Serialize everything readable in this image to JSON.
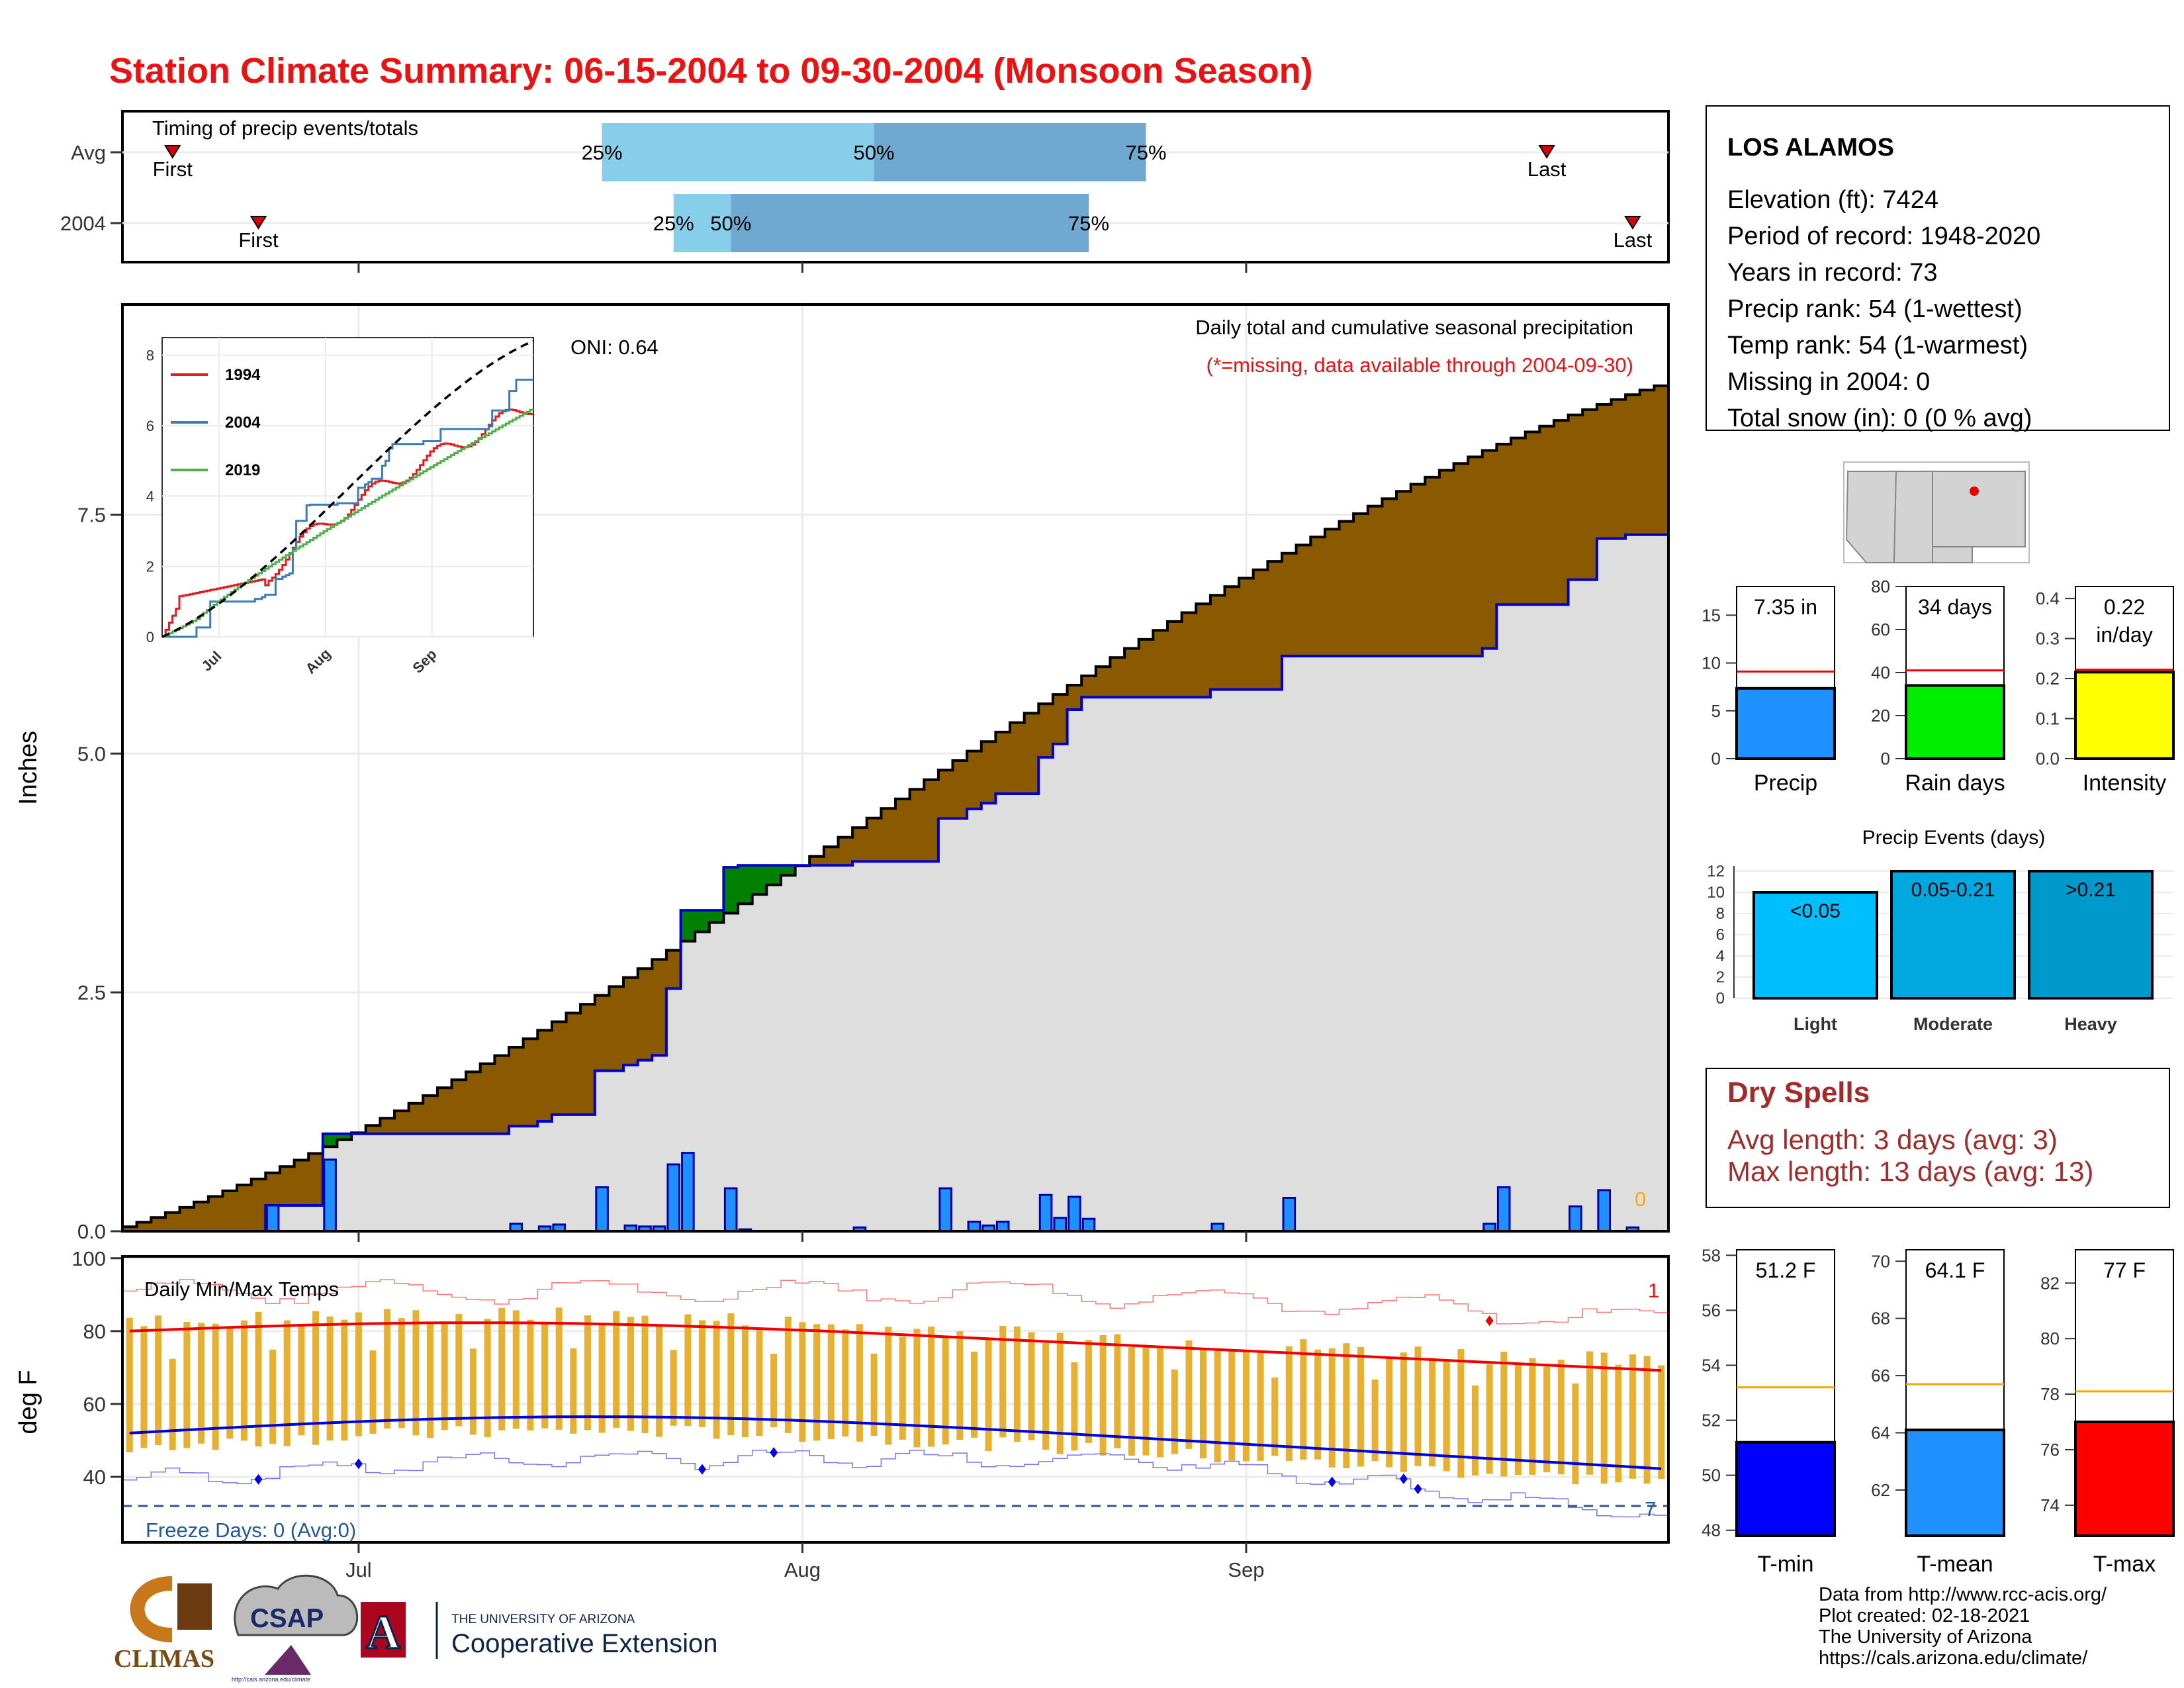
{
  "title": "Station Climate Summary: 06-15-2004 to 09-30-2004 (Monsoon Season)",
  "colors": {
    "title": "#ee1111",
    "avg_cum": "#8b5a00",
    "wet_cum": "#008000",
    "obs_cum": "#0000cc",
    "daily_bar": "#1e90ff",
    "tmax_avg": "#ee0000",
    "tmin_avg": "#0000dd",
    "range_bar": "#e8b030",
    "dry_text": "#a52a2a"
  },
  "timing": {
    "title": "Timing of precip events/totals",
    "rows": [
      {
        "label": "Avg",
        "first_label": "First",
        "last_label": "Last",
        "first_day": 3,
        "last_day": 99,
        "p25_day": 33,
        "p50_day": 52,
        "p75_day": 71,
        "p25": "25%",
        "p50": "50%",
        "p75": "75%"
      },
      {
        "label": "2004",
        "first_label": "First",
        "last_label": "Last",
        "first_day": 9,
        "last_day": 105,
        "p25_day": 38,
        "p50_day": 42,
        "p75_day": 67,
        "p25": "25%",
        "p50": "50%",
        "p75": "75%"
      }
    ]
  },
  "x_axis": {
    "months": [
      {
        "label": "Jul",
        "day": 16
      },
      {
        "label": "Aug",
        "day": 47
      },
      {
        "label": "Sep",
        "day": 78
      }
    ],
    "days": 108
  },
  "precip": {
    "ylabel": "Inches",
    "yticks": [
      "0.0",
      "2.5",
      "5.0",
      "7.5"
    ],
    "ymax": 9.7,
    "annotation1": "Daily total and cumulative seasonal precipitation",
    "annotation2": "(*=missing, data available through 2004-09-30)",
    "oni": "ONI: 0.64",
    "missing_count": "0",
    "observed_cum_total": 7.35,
    "avg_cum_total": 8.85,
    "daily_events": [
      [
        10,
        0.27
      ],
      [
        14,
        0.75
      ],
      [
        27,
        0.08
      ],
      [
        29,
        0.05
      ],
      [
        30,
        0.07
      ],
      [
        33,
        0.46
      ],
      [
        35,
        0.06
      ],
      [
        36,
        0.05
      ],
      [
        37,
        0.05
      ],
      [
        38,
        0.7
      ],
      [
        39,
        0.82
      ],
      [
        42,
        0.45
      ],
      [
        43,
        0.02
      ],
      [
        51,
        0.04
      ],
      [
        57,
        0.45
      ],
      [
        59,
        0.1
      ],
      [
        60,
        0.06
      ],
      [
        61,
        0.1
      ],
      [
        64,
        0.38
      ],
      [
        65,
        0.14
      ],
      [
        66,
        0.36
      ],
      [
        67,
        0.13
      ],
      [
        76,
        0.08
      ],
      [
        81,
        0.35
      ],
      [
        95,
        0.08
      ],
      [
        96,
        0.46
      ],
      [
        101,
        0.26
      ],
      [
        103,
        0.43
      ],
      [
        105,
        0.04
      ]
    ]
  },
  "inset": {
    "yticks": [
      "0",
      "2",
      "4",
      "6",
      "8"
    ],
    "xticks": [
      "Jul",
      "Aug",
      "Sep"
    ],
    "legend": [
      {
        "name": "1994",
        "color": "#e41a1c"
      },
      {
        "name": "2004",
        "color": "#377eb8"
      },
      {
        "name": "2019",
        "color": "#4daf4a"
      }
    ]
  },
  "temps": {
    "title": "Daily Min/Max Temps",
    "ylabel": "deg F",
    "yticks": [
      "40",
      "60",
      "80",
      "100"
    ],
    "freeze_label": "Freeze Days: 0 (Avg:0)",
    "top_count": "1",
    "bottom_count": "7"
  },
  "station": {
    "name": "LOS ALAMOS",
    "lines": [
      "Elevation (ft): 7424",
      "Period of record: 1948-2020",
      "Years in record: 73",
      "Precip rank: 54 (1-wettest)",
      "Temp rank: 54 (1-warmest)",
      "Missing in 2004: 0",
      "Total snow (in): 0 (0 % avg)"
    ]
  },
  "mini_bars": [
    {
      "label": "Precip",
      "value_text": "7.35 in",
      "value": 7.35,
      "avg": 9.1,
      "ymin": 0,
      "ymax": 18,
      "ticks": [
        "0",
        "5",
        "10",
        "15"
      ],
      "tick_vals": [
        0,
        5,
        10,
        15
      ],
      "color": "#1e90ff"
    },
    {
      "label": "Rain days",
      "value_text": "34 days",
      "value": 34,
      "avg": 41,
      "ymin": 0,
      "ymax": 80,
      "ticks": [
        "0",
        "20",
        "40",
        "60",
        "80"
      ],
      "tick_vals": [
        0,
        20,
        40,
        60,
        80
      ],
      "color": "#00ee00"
    },
    {
      "label": "Intensity",
      "value_text": "0.22 in/day",
      "value": 0.216,
      "avg": 0.222,
      "ymin": 0,
      "ymax": 0.43,
      "ticks": [
        "0.0",
        "0.1",
        "0.2",
        "0.3",
        "0.4"
      ],
      "tick_vals": [
        0,
        0.1,
        0.2,
        0.3,
        0.4
      ],
      "color": "#ffff00"
    }
  ],
  "events": {
    "title": "Precip Events (days)",
    "yticks": [
      "0",
      "2",
      "4",
      "6",
      "8",
      "10",
      "12"
    ],
    "bars": [
      {
        "label": "Light",
        "range": "<0.05",
        "value": 10,
        "color": "#00bfff"
      },
      {
        "label": "Moderate",
        "range": "0.05-0.21",
        "value": 12,
        "color": "#00a8e0"
      },
      {
        "label": "Heavy",
        "range": ">0.21",
        "value": 12,
        "color": "#0099cc"
      }
    ]
  },
  "dry_spells": {
    "title": "Dry Spells",
    "avg": "Avg length: 3 days (avg: 3)",
    "max": "Max length: 13 days (avg: 13)"
  },
  "temp_bars": [
    {
      "label": "T-min",
      "value_text": "51.2 F",
      "value": 51.2,
      "avg": 53.2,
      "ymin": 47.8,
      "ymax": 58.2,
      "ticks": [
        "48",
        "50",
        "52",
        "54",
        "56",
        "58"
      ],
      "tick_vals": [
        48,
        50,
        52,
        54,
        56,
        58
      ],
      "color": "#0000ff"
    },
    {
      "label": "T-mean",
      "value_text": "64.1 F",
      "value": 64.1,
      "avg": 65.7,
      "ymin": 60.4,
      "ymax": 70.4,
      "ticks": [
        "62",
        "64",
        "66",
        "68",
        "70"
      ],
      "tick_vals": [
        62,
        64,
        66,
        68,
        70
      ],
      "color": "#1e90ff"
    },
    {
      "label": "T-max",
      "value_text": "77 F",
      "value": 77,
      "avg": 78.1,
      "ymin": 72.9,
      "ymax": 83.2,
      "ticks": [
        "74",
        "76",
        "78",
        "80",
        "82"
      ],
      "tick_vals": [
        74,
        76,
        78,
        80,
        82
      ],
      "color": "#ff0000"
    }
  ],
  "credits": [
    "Data from http://www.rcc-acis.org/",
    "Plot created: 02-18-2021",
    "The University of Arizona",
    "https://cals.arizona.edu/climate/"
  ],
  "logos": {
    "climas": "CLIMAS",
    "csap": "CSAP",
    "ua_small": "THE UNIVERSITY OF ARIZONA",
    "ua_big": "Cooperative Extension",
    "ua_letter": "A",
    "csap_url": "http://cals.arizona.edu/climate"
  }
}
